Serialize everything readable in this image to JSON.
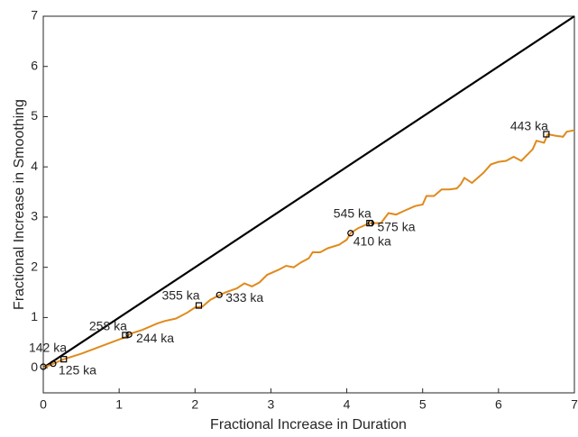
{
  "chart_data": {
    "type": "line",
    "xlabel": "Fractional Increase in Duration",
    "ylabel": "Fractional Increase in Smoothing",
    "xlim": [
      0,
      7
    ],
    "ylim": [
      -0.5,
      7
    ],
    "xticks": [
      0,
      1,
      2,
      3,
      4,
      5,
      6,
      7
    ],
    "yticks": [
      0,
      1,
      2,
      3,
      4,
      5,
      6,
      7
    ],
    "series": [
      {
        "color": "#000000",
        "x": [
          0,
          7
        ],
        "values": [
          0,
          7
        ]
      },
      {
        "color": "#e08a1c",
        "x": [
          0,
          0.13,
          0.27,
          0.5,
          0.8,
          1.1,
          1.15,
          1.3,
          1.5,
          1.6,
          1.75,
          1.9,
          2.0,
          2.1,
          2.2,
          2.3,
          2.4,
          2.55,
          2.65,
          2.75,
          2.85,
          2.95,
          3.1,
          3.2,
          3.3,
          3.4,
          3.5,
          3.55,
          3.65,
          3.75,
          3.9,
          4.0,
          4.05,
          4.15,
          4.3,
          4.45,
          4.55,
          4.65,
          4.75,
          4.9,
          5.0,
          5.05,
          5.15,
          5.25,
          5.35,
          5.45,
          5.5,
          5.55,
          5.65,
          5.8,
          5.9,
          6.0,
          6.1,
          6.2,
          6.3,
          6.45,
          6.5,
          6.6,
          6.65,
          6.75,
          6.85,
          6.9,
          7.0
        ],
        "values": [
          0,
          0.08,
          0.17,
          0.28,
          0.45,
          0.62,
          0.68,
          0.75,
          0.88,
          0.93,
          0.98,
          1.1,
          1.2,
          1.22,
          1.35,
          1.43,
          1.5,
          1.58,
          1.68,
          1.62,
          1.7,
          1.85,
          1.95,
          2.03,
          2.0,
          2.1,
          2.18,
          2.3,
          2.3,
          2.38,
          2.45,
          2.55,
          2.68,
          2.78,
          2.88,
          2.88,
          3.08,
          3.05,
          3.12,
          3.22,
          3.25,
          3.42,
          3.42,
          3.55,
          3.55,
          3.57,
          3.65,
          3.78,
          3.68,
          3.88,
          4.05,
          4.1,
          4.12,
          4.2,
          4.12,
          4.35,
          4.52,
          4.48,
          4.65,
          4.62,
          4.6,
          4.7,
          4.73
        ]
      }
    ],
    "markers": {
      "shapes": [
        "circle",
        "circle",
        "square",
        "square",
        "circle",
        "square",
        "circle",
        "square",
        "circle",
        "circle",
        "square"
      ],
      "x": [
        0,
        0.13,
        0.27,
        1.08,
        1.13,
        2.05,
        2.32,
        4.3,
        4.32,
        4.05,
        6.63
      ],
      "values": [
        0.02,
        0.08,
        0.17,
        0.65,
        0.66,
        1.24,
        1.45,
        2.88,
        2.88,
        2.68,
        4.65
      ],
      "labels": [
        "142 ka",
        "125 ka",
        null,
        "258 ka",
        "244 ka",
        "355 ka",
        "333 ka",
        "545 ka",
        "575 ka",
        "410 ka",
        "443 ka"
      ]
    }
  }
}
